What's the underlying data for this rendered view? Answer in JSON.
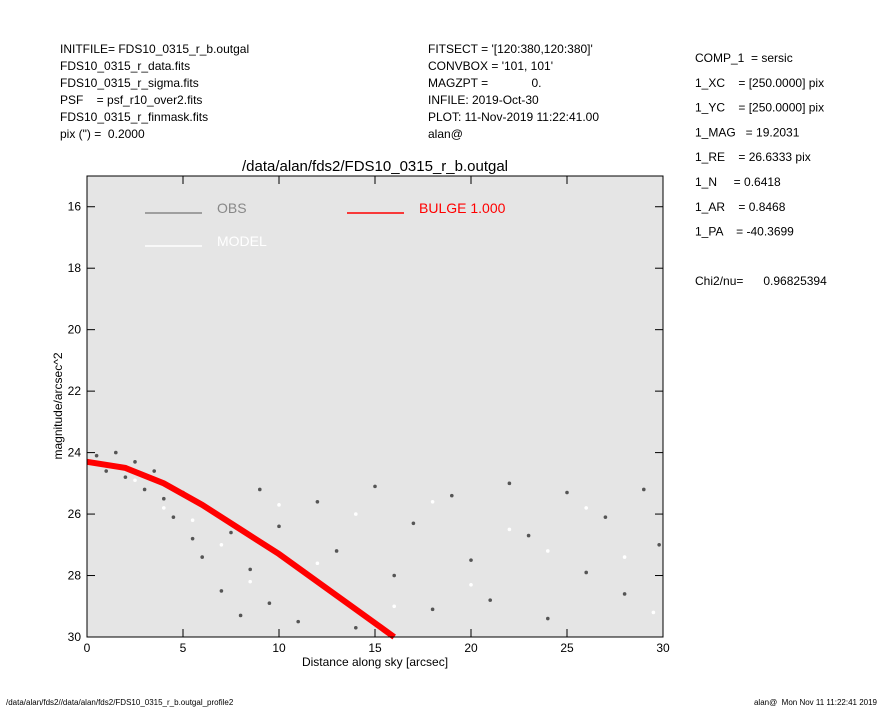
{
  "header": {
    "left": [
      "INITFILE= FDS10_0315_r_b.outgal",
      "FDS10_0315_r_data.fits",
      "FDS10_0315_r_sigma.fits",
      "PSF    = psf_r10_over2.fits",
      "FDS10_0315_r_finmask.fits",
      "pix (\") =  0.2000"
    ],
    "middle": [
      "FITSECT = '[120:380,120:380]'",
      "CONVBOX = '101, 101'",
      "MAGZPT =             0.",
      "INFILE: 2019-Oct-30",
      "PLOT: 11-Nov-2019 11:22:41.00",
      "alan@"
    ],
    "right": [
      "COMP_1  = sersic",
      "1_XC    = [250.0000] pix",
      "1_YC    = [250.0000] pix",
      "1_MAG   = 19.2031",
      "1_RE    = 26.6333 pix",
      "1_N     = 0.6418",
      "1_AR    = 0.8468",
      "1_PA    = -40.3699"
    ],
    "chi2": "Chi2/nu=      0.96825394"
  },
  "footer": {
    "left": "/data/alan/fds2//data/alan/fds2/FDS10_0315_r_b.outgal_profile2",
    "right": "alan@  Mon Nov 11 11:22:41 2019"
  },
  "chart_data": {
    "type": "scatter",
    "title": "/data/alan/fds2/FDS10_0315_r_b.outgal",
    "x_label": "Distance along sky [arcsec]",
    "y_label": "magnitude/arcsec^2",
    "xlim": [
      0,
      30
    ],
    "xticks": [
      0,
      5,
      10,
      15,
      20,
      25,
      30
    ],
    "ylim": [
      30,
      15
    ],
    "yticks": [
      16,
      18,
      20,
      22,
      24,
      26,
      28,
      30
    ],
    "background": "#e5e5e5",
    "series": [
      {
        "name": "OBS",
        "color": "#888888",
        "point_color": "#555555",
        "style": "points",
        "x": [
          0.5,
          1,
          1.5,
          2,
          2.5,
          3,
          3.5,
          4,
          4.5,
          5,
          5.5,
          6,
          6.5,
          7,
          7.5,
          8,
          8.5,
          9,
          9.5,
          10,
          11,
          12,
          13,
          14,
          15,
          16,
          17,
          18,
          19,
          20,
          21,
          22,
          23,
          24,
          25,
          26,
          27,
          28,
          29,
          29.8
        ],
        "values": [
          24.1,
          24.6,
          24.0,
          24.8,
          24.3,
          25.2,
          24.6,
          25.5,
          26.1,
          25.3,
          26.8,
          27.4,
          25.9,
          28.5,
          26.6,
          29.3,
          27.8,
          25.2,
          28.9,
          26.4,
          29.5,
          25.6,
          27.2,
          29.7,
          25.1,
          28.0,
          26.3,
          29.1,
          25.4,
          27.5,
          28.8,
          25.0,
          26.7,
          29.4,
          25.3,
          27.9,
          26.1,
          28.6,
          25.2,
          27.0
        ]
      },
      {
        "name": "MODEL",
        "color": "#ffffff",
        "point_color": "#ffffff",
        "style": "points",
        "x": [
          1,
          2.5,
          4,
          5.5,
          7,
          8.5,
          10,
          12,
          14,
          16,
          18,
          20,
          22,
          24,
          26,
          28,
          29.5
        ],
        "values": [
          24.4,
          24.9,
          25.8,
          26.2,
          27.0,
          28.2,
          25.7,
          27.6,
          26.0,
          29.0,
          25.6,
          28.3,
          26.5,
          27.2,
          25.8,
          27.4,
          29.2
        ]
      },
      {
        "name": "BULGE 1.000",
        "color": "#ff0000",
        "style": "line",
        "x": [
          0,
          2,
          4,
          6,
          8,
          10,
          12,
          14,
          16
        ],
        "values": [
          24.3,
          24.5,
          25.0,
          25.7,
          26.5,
          27.3,
          28.2,
          29.1,
          30.0
        ]
      }
    ]
  }
}
